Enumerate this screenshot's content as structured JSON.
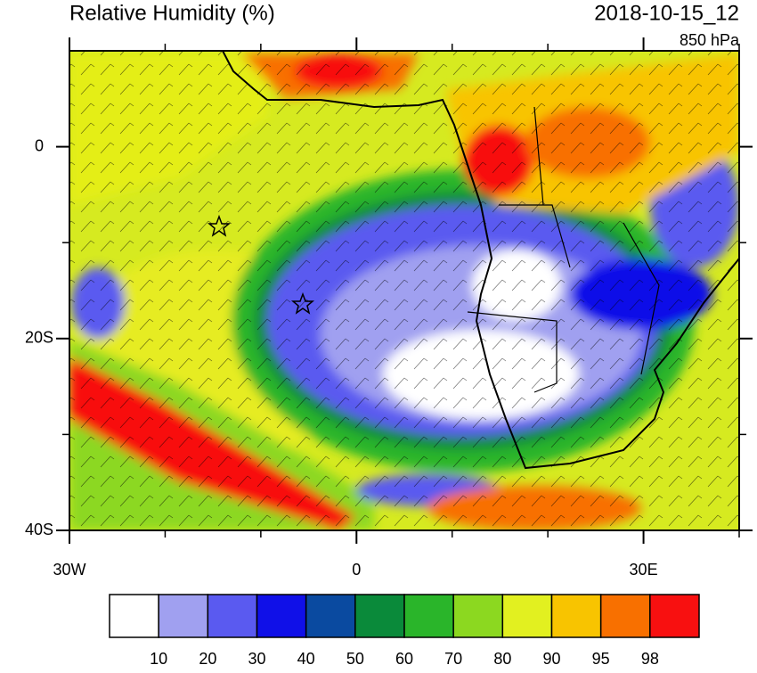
{
  "map": {
    "title": "Relative Humidity (%)",
    "valid_time": "2018-10-15_12",
    "level": "850 hPa",
    "lon_range": [
      -30,
      40
    ],
    "lat_range": [
      -40,
      10
    ],
    "lon_ticks": [
      {
        "value": -30,
        "label": "30W"
      },
      0,
      {
        "value": 30,
        "label": "30E"
      }
    ],
    "lat_ticks": [
      0,
      {
        "value": -20,
        "label": "20S"
      },
      {
        "value": -40,
        "label": "40S"
      }
    ],
    "lon_minor_ticks": [
      -20,
      -10,
      10,
      20,
      40
    ],
    "lat_minor_ticks": [
      -10,
      -30
    ]
  },
  "colorbar": {
    "colors": [
      "#ffffff",
      "#a0a0f0",
      "#5a5af0",
      "#1010e8",
      "#0a4aa0",
      "#0a8a3a",
      "#2ab52a",
      "#8cd820",
      "#e2f020",
      "#f8c400",
      "#f87000",
      "#f81010"
    ],
    "labels": [
      "10",
      "20",
      "30",
      "40",
      "50",
      "60",
      "70",
      "80",
      "90",
      "95",
      "98"
    ]
  }
}
